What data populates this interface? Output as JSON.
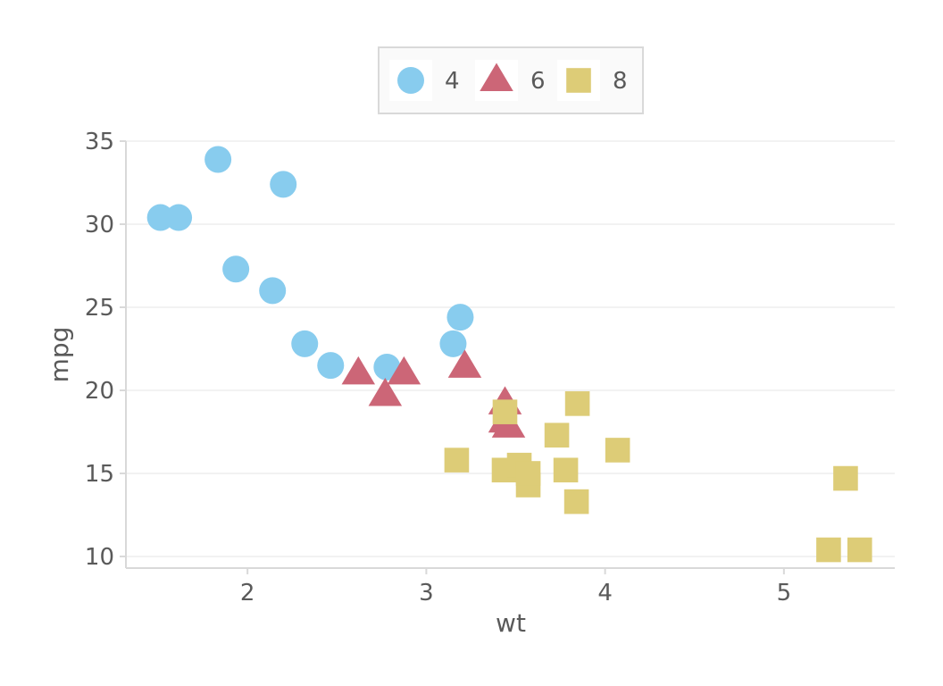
{
  "chart_data": {
    "type": "scatter",
    "xlabel": "wt",
    "ylabel": "mpg",
    "xlim": [
      1.32,
      5.62
    ],
    "ylim": [
      9.3,
      35.0
    ],
    "x_ticks": [
      2,
      3,
      4,
      5
    ],
    "y_ticks": [
      10,
      15,
      20,
      25,
      30,
      35
    ],
    "grid": "horizontal",
    "legend_position": "top",
    "series": [
      {
        "name": "4",
        "marker": "circle",
        "color": "#88ccee",
        "points": [
          [
            1.513,
            30.4
          ],
          [
            1.615,
            30.4
          ],
          [
            1.835,
            33.9
          ],
          [
            1.935,
            27.3
          ],
          [
            2.14,
            26.0
          ],
          [
            2.2,
            32.4
          ],
          [
            2.32,
            22.8
          ],
          [
            2.465,
            21.5
          ],
          [
            2.78,
            21.4
          ],
          [
            3.15,
            22.8
          ],
          [
            3.19,
            24.4
          ]
        ]
      },
      {
        "name": "6",
        "marker": "triangle",
        "color": "#cc6677",
        "points": [
          [
            2.62,
            21.0
          ],
          [
            2.77,
            19.7
          ],
          [
            2.875,
            21.0
          ],
          [
            3.215,
            21.4
          ],
          [
            3.44,
            19.2
          ],
          [
            3.44,
            18.1
          ],
          [
            3.46,
            17.8
          ]
        ]
      },
      {
        "name": "8",
        "marker": "square",
        "color": "#ddcc77",
        "points": [
          [
            3.17,
            15.8
          ],
          [
            3.435,
            15.2
          ],
          [
            3.44,
            18.7
          ],
          [
            3.52,
            15.5
          ],
          [
            3.57,
            14.3
          ],
          [
            3.57,
            15.0
          ],
          [
            3.73,
            17.3
          ],
          [
            3.78,
            15.2
          ],
          [
            3.84,
            13.3
          ],
          [
            3.845,
            19.2
          ],
          [
            4.07,
            16.4
          ],
          [
            5.25,
            10.4
          ],
          [
            5.345,
            14.7
          ],
          [
            5.424,
            10.4
          ]
        ]
      }
    ]
  }
}
